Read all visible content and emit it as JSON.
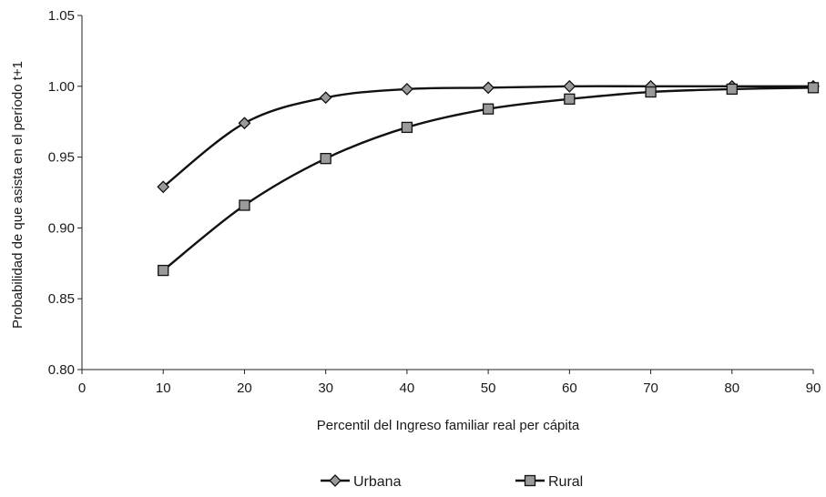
{
  "chart_data": {
    "type": "line",
    "x": [
      10,
      20,
      30,
      40,
      50,
      60,
      70,
      80,
      90
    ],
    "series": [
      {
        "name": "Urbana",
        "marker": "diamond",
        "color": "#111111",
        "marker_fill": "#9a9a9a",
        "values": [
          0.929,
          0.974,
          0.992,
          0.998,
          0.999,
          1.0,
          1.0,
          1.0,
          1.0
        ]
      },
      {
        "name": "Rural",
        "marker": "square",
        "color": "#111111",
        "marker_fill": "#9a9a9a",
        "values": [
          0.87,
          0.916,
          0.949,
          0.971,
          0.984,
          0.991,
          0.996,
          0.998,
          0.999
        ]
      }
    ],
    "xlabel": "Percentil del Ingreso familiar real per cápita",
    "ylabel": "Probabilidad de que asista en el período t+1",
    "xlim": [
      0,
      90
    ],
    "ylim": [
      0.8,
      1.05
    ],
    "x_ticks": [
      "0",
      "10",
      "20",
      "30",
      "40",
      "50",
      "60",
      "70",
      "80",
      "90"
    ],
    "y_ticks": [
      "0.80",
      "0.85",
      "0.90",
      "0.95",
      "1.00",
      "1.05"
    ],
    "grid": false,
    "legend_position": "bottom",
    "smooth": true
  }
}
